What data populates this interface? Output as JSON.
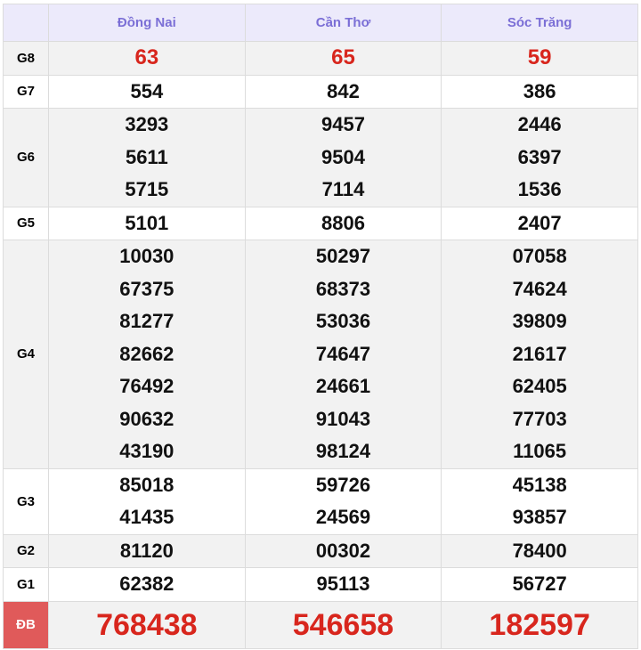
{
  "provinces": [
    "Đồng Nai",
    "Cần Thơ",
    "Sóc Trăng"
  ],
  "prizes": [
    {
      "label": "G8",
      "values": [
        [
          "63"
        ],
        [
          "65"
        ],
        [
          "59"
        ]
      ]
    },
    {
      "label": "G7",
      "values": [
        [
          "554"
        ],
        [
          "842"
        ],
        [
          "386"
        ]
      ]
    },
    {
      "label": "G6",
      "values": [
        [
          "3293",
          "5611",
          "5715"
        ],
        [
          "9457",
          "9504",
          "7114"
        ],
        [
          "2446",
          "6397",
          "1536"
        ]
      ]
    },
    {
      "label": "G5",
      "values": [
        [
          "5101"
        ],
        [
          "8806"
        ],
        [
          "2407"
        ]
      ]
    },
    {
      "label": "G4",
      "values": [
        [
          "10030",
          "67375",
          "81277",
          "82662",
          "76492",
          "90632",
          "43190"
        ],
        [
          "50297",
          "68373",
          "53036",
          "74647",
          "24661",
          "91043",
          "98124"
        ],
        [
          "07058",
          "74624",
          "39809",
          "21617",
          "62405",
          "77703",
          "11065"
        ]
      ]
    },
    {
      "label": "G3",
      "values": [
        [
          "85018",
          "41435"
        ],
        [
          "59726",
          "24569"
        ],
        [
          "45138",
          "93857"
        ]
      ]
    },
    {
      "label": "G2",
      "values": [
        [
          "81120"
        ],
        [
          "00302"
        ],
        [
          "78400"
        ]
      ]
    },
    {
      "label": "G1",
      "values": [
        [
          "62382"
        ],
        [
          "95113"
        ],
        [
          "56727"
        ]
      ]
    },
    {
      "label": "ĐB",
      "values": [
        [
          "768438"
        ],
        [
          "546658"
        ],
        [
          "182597"
        ]
      ]
    }
  ],
  "colors": {
    "header_text": "#7b6fd6",
    "header_bg": "#ECEAFB",
    "highlight": "#d8261d"
  }
}
